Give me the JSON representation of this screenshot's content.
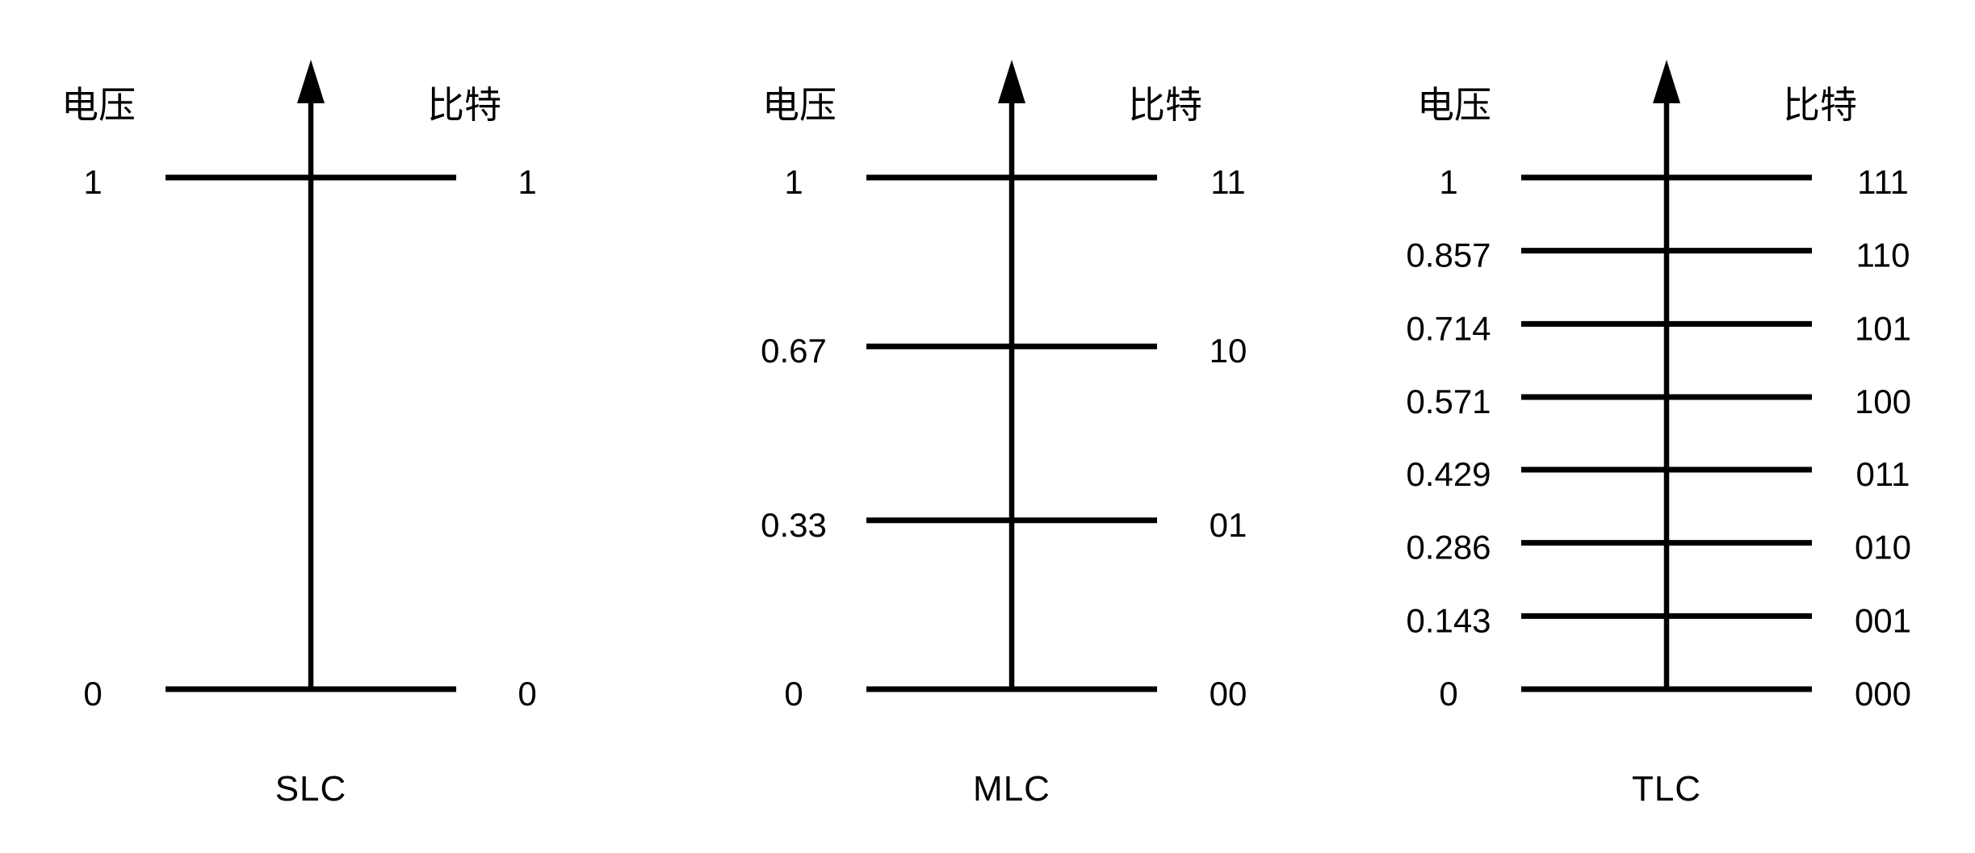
{
  "page": {
    "background": "#ffffff",
    "ink_color": "#000000"
  },
  "figure": {
    "left_axis_title": "电压",
    "right_axis_title": "比特",
    "diagrams": [
      {
        "title": "SLC",
        "levels": [
          {
            "v": 0,
            "voltage": "0",
            "bits": "0"
          },
          {
            "v": 1,
            "voltage": "1",
            "bits": "1"
          }
        ]
      },
      {
        "title": "MLC",
        "levels": [
          {
            "v": 0,
            "voltage": "0",
            "bits": "00"
          },
          {
            "v": 0.33,
            "voltage": "0.33",
            "bits": "01"
          },
          {
            "v": 0.67,
            "voltage": "0.67",
            "bits": "10"
          },
          {
            "v": 1,
            "voltage": "1",
            "bits": "11"
          }
        ]
      },
      {
        "title": "TLC",
        "levels": [
          {
            "v": 0,
            "voltage": "0",
            "bits": "000"
          },
          {
            "v": 0.143,
            "voltage": "0.143",
            "bits": "001"
          },
          {
            "v": 0.286,
            "voltage": "0.286",
            "bits": "010"
          },
          {
            "v": 0.429,
            "voltage": "0.429",
            "bits": "011"
          },
          {
            "v": 0.571,
            "voltage": "0.571",
            "bits": "100"
          },
          {
            "v": 0.714,
            "voltage": "0.714",
            "bits": "101"
          },
          {
            "v": 0.857,
            "voltage": "0.857",
            "bits": "110"
          },
          {
            "v": 1,
            "voltage": "1",
            "bits": "111"
          }
        ]
      }
    ]
  },
  "chart_data": [
    {
      "type": "table",
      "title": "SLC",
      "columns": [
        "电压",
        "比特"
      ],
      "rows": [
        [
          "0",
          "0"
        ],
        [
          "1",
          "1"
        ]
      ]
    },
    {
      "type": "table",
      "title": "MLC",
      "columns": [
        "电压",
        "比特"
      ],
      "rows": [
        [
          "0",
          "00"
        ],
        [
          "0.33",
          "01"
        ],
        [
          "0.67",
          "10"
        ],
        [
          "1",
          "11"
        ]
      ]
    },
    {
      "type": "table",
      "title": "TLC",
      "columns": [
        "电压",
        "比特"
      ],
      "rows": [
        [
          "0",
          "000"
        ],
        [
          "0.143",
          "001"
        ],
        [
          "0.286",
          "010"
        ],
        [
          "0.429",
          "011"
        ],
        [
          "0.571",
          "100"
        ],
        [
          "0.714",
          "101"
        ],
        [
          "0.857",
          "110"
        ],
        [
          "1",
          "111"
        ]
      ]
    }
  ]
}
